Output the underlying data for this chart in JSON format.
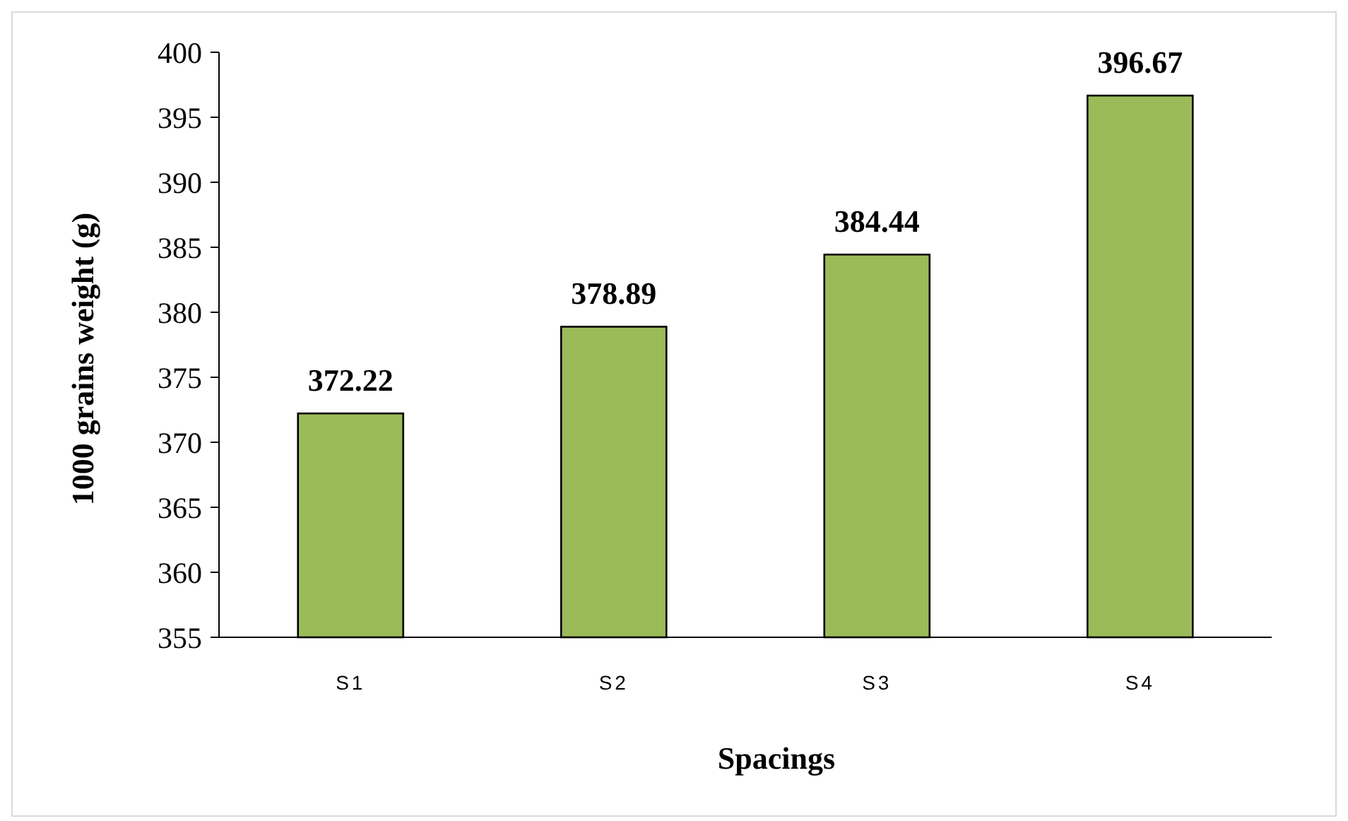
{
  "chart_data": {
    "type": "bar",
    "xlabel": "Spacings",
    "ylabel": "1000 grains weight (g)",
    "categories": [
      "S1",
      "S2",
      "S3",
      "S4"
    ],
    "values": [
      372.22,
      378.89,
      384.44,
      396.67
    ],
    "color": "#9bbb59",
    "ylim": [
      355,
      400
    ],
    "yticks": [
      355,
      360,
      365,
      370,
      375,
      380,
      385,
      390,
      395,
      400
    ],
    "grid": false,
    "data_labels": true
  }
}
